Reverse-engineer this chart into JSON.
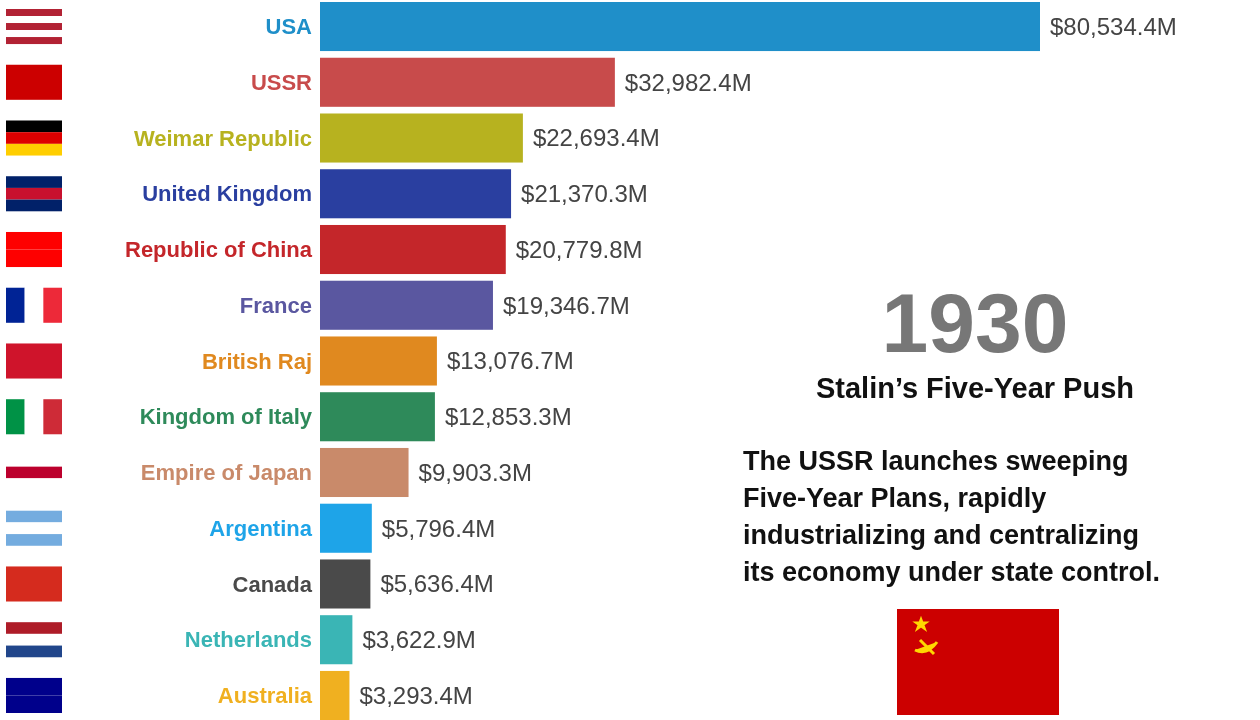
{
  "chart_data": {
    "type": "bar",
    "orientation": "horizontal",
    "title": "1930",
    "subtitle": "Stalin’s Five-Year Push",
    "annotations": [
      "The USSR launches sweeping Five-Year Plans, rapidly industrializing and centralizing its economy under state control."
    ],
    "categories": [
      "USA",
      "USSR",
      "Weimar Republic",
      "United Kingdom",
      "Republic of China",
      "France",
      "British Raj",
      "Kingdom of Italy",
      "Empire of Japan",
      "Argentina",
      "Canada",
      "Netherlands",
      "Australia"
    ],
    "values": [
      80534.4,
      32982.4,
      22693.4,
      21370.3,
      20779.8,
      19346.7,
      13076.7,
      12853.3,
      9903.3,
      5796.4,
      5636.4,
      3622.9,
      3293.4
    ],
    "value_labels": [
      "$80,534.4M",
      "$32,982.4M",
      "$22,693.4M",
      "$21,370.3M",
      "$20,779.8M",
      "$19,346.7M",
      "$13,076.7M",
      "$12,853.3M",
      "$9,903.3M",
      "$5,796.4M",
      "$5,636.4M",
      "$3,622.9M",
      "$3,293.4M"
    ],
    "colors": [
      "#1f8fc9",
      "#c84b4b",
      "#b7b21f",
      "#2a3fa0",
      "#c4262a",
      "#5a57a0",
      "#e0891f",
      "#2e8a5a",
      "#c98a6a",
      "#1ea4e8",
      "#4a4a4a",
      "#3ab5b5",
      "#f0b020"
    ]
  }
}
